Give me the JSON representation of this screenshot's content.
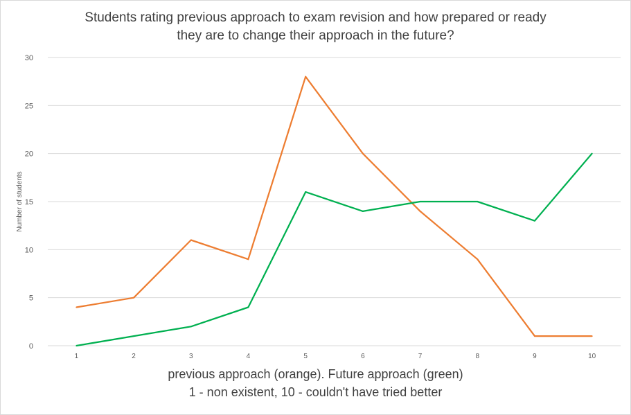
{
  "chart_data": {
    "type": "line",
    "title_line1": "Students rating previous approach to exam revision and how prepared or ready",
    "title_line2": "they are to change their approach in the future?",
    "ylabel": "Number of students",
    "xlabel_line1": "previous approach (orange).  Future approach (green)",
    "xlabel_line2": "1 - non existent, 10 - couldn't have tried better",
    "x": [
      1,
      2,
      3,
      4,
      5,
      6,
      7,
      8,
      9,
      10
    ],
    "ylim": [
      0,
      30
    ],
    "yticks": [
      0,
      5,
      10,
      15,
      20,
      25,
      30
    ],
    "grid": true,
    "series": [
      {
        "color": "#ED7D31",
        "values": [
          4,
          5,
          11,
          9,
          28,
          20,
          14,
          9,
          1,
          1
        ]
      },
      {
        "color": "#00B050",
        "values": [
          0,
          1,
          2,
          4,
          16,
          14,
          15,
          15,
          13,
          20
        ]
      }
    ]
  }
}
